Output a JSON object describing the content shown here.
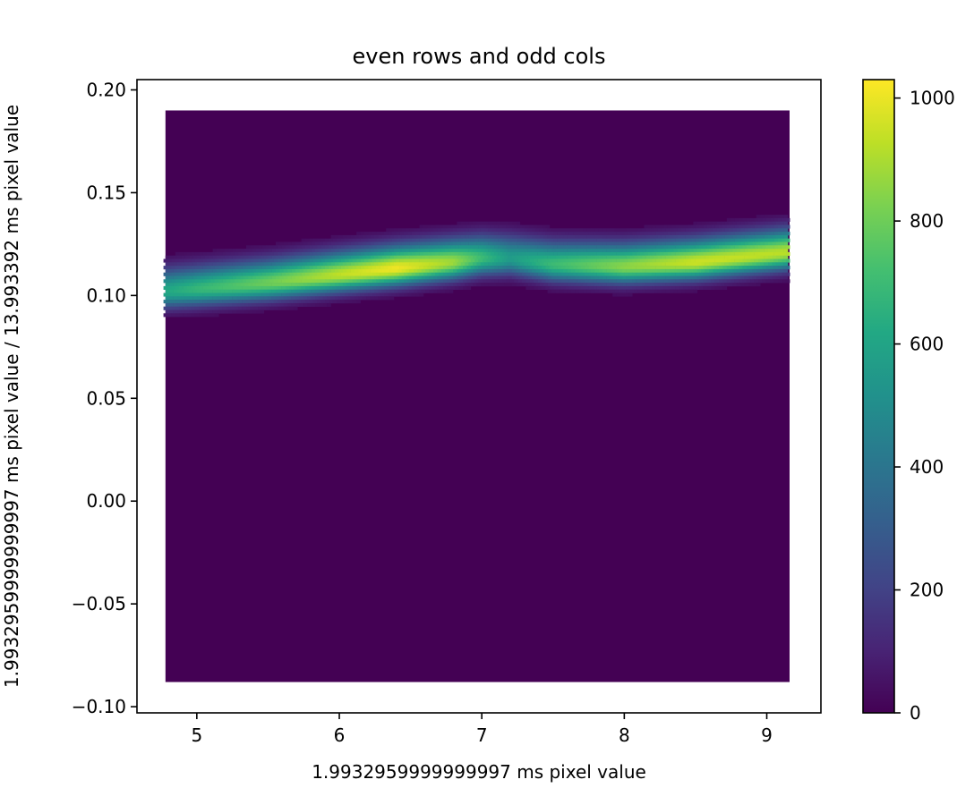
{
  "chart_data": {
    "type": "heatmap",
    "subtype": "hexbin",
    "title": "even rows and odd cols",
    "xlabel": "1.9932959999999997 ms pixel value",
    "ylabel": "1.9932959999999997 ms pixel value / 13.993392 ms pixel value",
    "xlim": [
      4.58,
      9.38
    ],
    "ylim": [
      -0.103,
      0.205
    ],
    "x_ticks": [
      5,
      6,
      7,
      8,
      9
    ],
    "y_ticks": [
      -0.1,
      -0.05,
      0.0,
      0.05,
      0.1,
      0.15,
      0.2
    ],
    "x_tick_labels": [
      "5",
      "6",
      "7",
      "8",
      "9"
    ],
    "y_tick_labels": [
      "−0.10",
      "−0.05",
      "0.00",
      "0.05",
      "0.10",
      "0.15",
      "0.20"
    ],
    "data_extent": {
      "x": [
        4.78,
        9.16
      ],
      "y": [
        -0.088,
        0.19
      ]
    },
    "colormap": "viridis",
    "colorbar": {
      "range": [
        0,
        1030
      ],
      "ticks": [
        0,
        200,
        400,
        600,
        800,
        1000
      ],
      "tick_labels": [
        "0",
        "200",
        "400",
        "600",
        "800",
        "1000"
      ]
    },
    "density_ridge": [
      {
        "x": 4.8,
        "y": 0.102,
        "peak_count": 620
      },
      {
        "x": 5.0,
        "y": 0.103,
        "peak_count": 680
      },
      {
        "x": 5.5,
        "y": 0.106,
        "peak_count": 800
      },
      {
        "x": 6.0,
        "y": 0.11,
        "peak_count": 930
      },
      {
        "x": 6.4,
        "y": 0.113,
        "peak_count": 1010
      },
      {
        "x": 6.8,
        "y": 0.116,
        "peak_count": 880
      },
      {
        "x": 7.0,
        "y": 0.118,
        "peak_count": 700
      },
      {
        "x": 7.2,
        "y": 0.118,
        "peak_count": 560
      },
      {
        "x": 7.5,
        "y": 0.115,
        "peak_count": 700
      },
      {
        "x": 8.0,
        "y": 0.114,
        "peak_count": 850
      },
      {
        "x": 8.5,
        "y": 0.116,
        "peak_count": 950
      },
      {
        "x": 9.16,
        "y": 0.121,
        "peak_count": 920
      }
    ],
    "grid": false,
    "legend": "colorbar-right"
  }
}
